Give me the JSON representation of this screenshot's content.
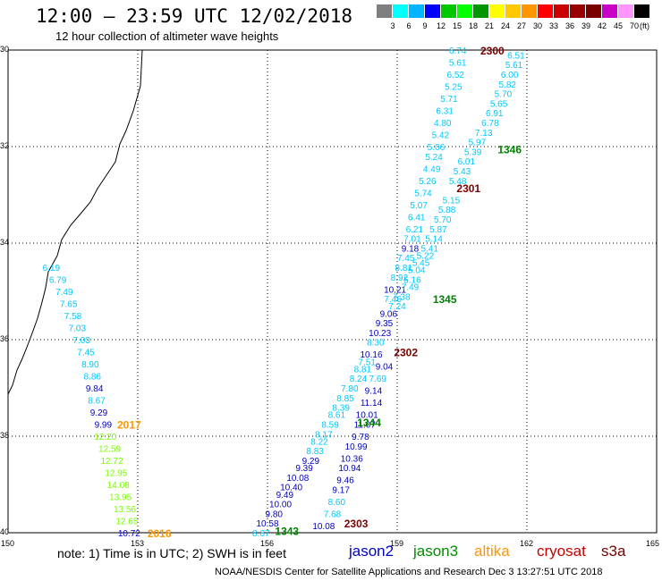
{
  "title": "12:00 – 23:59 UTC 12/02/2018",
  "subtitle": "12 hour collection of altimeter wave heights",
  "legend": {
    "colors": [
      "#7f7f7f",
      "#00ffff",
      "#00b4ff",
      "#0000ff",
      "#00c800",
      "#00ff00",
      "#009600",
      "#ffff00",
      "#ffc800",
      "#ff9600",
      "#ff0000",
      "#c80000",
      "#960000",
      "#780000",
      "#c800c8",
      "#ff96ff",
      "#000000"
    ],
    "labels": [
      "3",
      "6",
      "9",
      "12",
      "15",
      "18",
      "21",
      "24",
      "27",
      "30",
      "33",
      "36",
      "39",
      "42",
      "45",
      "70"
    ],
    "unit": "(ft)"
  },
  "chart_data": {
    "type": "scatter",
    "x_ticks": [
      "150",
      "153",
      "156",
      "159",
      "162",
      "165"
    ],
    "y_ticks": [
      "30",
      "32",
      "34",
      "36",
      "38",
      "40"
    ],
    "xlim": [
      150,
      165
    ],
    "ylim": [
      30,
      40
    ],
    "points": [
      {
        "v": "6.74",
        "lon": 160.4,
        "lat": 30.0,
        "c": "#00c8ff"
      },
      {
        "v": "5.61",
        "lon": 160.4,
        "lat": 30.25,
        "c": "#00c8ff"
      },
      {
        "v": "6.52",
        "lon": 160.35,
        "lat": 30.5,
        "c": "#00c8ff"
      },
      {
        "v": "5.25",
        "lon": 160.3,
        "lat": 30.75,
        "c": "#00c8ff"
      },
      {
        "v": "5.71",
        "lon": 160.2,
        "lat": 31.0,
        "c": "#00c8ff"
      },
      {
        "v": "6.31",
        "lon": 160.1,
        "lat": 31.25,
        "c": "#00c8ff"
      },
      {
        "v": "4.80",
        "lon": 160.05,
        "lat": 31.5,
        "c": "#00c8ff"
      },
      {
        "v": "5.42",
        "lon": 160.0,
        "lat": 31.75,
        "c": "#00c8ff"
      },
      {
        "v": "5.06",
        "lon": 159.9,
        "lat": 32.0,
        "c": "#00c8ff"
      },
      {
        "v": "5.24",
        "lon": 159.85,
        "lat": 32.2,
        "c": "#00c8ff"
      },
      {
        "v": "4.49",
        "lon": 159.8,
        "lat": 32.45,
        "c": "#00c8ff"
      },
      {
        "v": "5.26",
        "lon": 159.7,
        "lat": 32.7,
        "c": "#00c8ff"
      },
      {
        "v": "5.74",
        "lon": 159.6,
        "lat": 32.95,
        "c": "#00c8ff"
      },
      {
        "v": "5.07",
        "lon": 159.5,
        "lat": 33.2,
        "c": "#00c8ff"
      },
      {
        "v": "6.41",
        "lon": 159.45,
        "lat": 33.45,
        "c": "#00c8ff"
      },
      {
        "v": "6.21",
        "lon": 159.4,
        "lat": 33.7,
        "c": "#00c8ff"
      },
      {
        "v": "7.01",
        "lon": 159.35,
        "lat": 33.9,
        "c": "#00c8ff"
      },
      {
        "v": "9.18",
        "lon": 159.3,
        "lat": 34.1,
        "c": "#0000c8"
      },
      {
        "v": "7.45",
        "lon": 159.2,
        "lat": 34.3,
        "c": "#00c8ff"
      },
      {
        "v": "8.81",
        "lon": 159.15,
        "lat": 34.5,
        "c": "#00c8ff"
      },
      {
        "v": "8.92",
        "lon": 159.05,
        "lat": 34.7,
        "c": "#00c8ff"
      },
      {
        "v": "10.21",
        "lon": 158.95,
        "lat": 34.95,
        "c": "#0000c8"
      },
      {
        "v": "7.46",
        "lon": 158.9,
        "lat": 35.15,
        "c": "#00c8ff"
      },
      {
        "v": "9.06",
        "lon": 158.8,
        "lat": 35.45,
        "c": "#0000c8"
      },
      {
        "v": "9.35",
        "lon": 158.7,
        "lat": 35.65,
        "c": "#0000c8"
      },
      {
        "v": "10.23",
        "lon": 158.6,
        "lat": 35.85,
        "c": "#0000c8"
      },
      {
        "v": "8.30",
        "lon": 158.5,
        "lat": 36.05,
        "c": "#00c8ff"
      },
      {
        "v": "10.16",
        "lon": 158.4,
        "lat": 36.3,
        "c": "#0000c8"
      },
      {
        "v": "7.51",
        "lon": 158.3,
        "lat": 36.45,
        "c": "#00c8ff"
      },
      {
        "v": "8.81",
        "lon": 158.2,
        "lat": 36.6,
        "c": "#00c8ff"
      },
      {
        "v": "8.24",
        "lon": 158.1,
        "lat": 36.8,
        "c": "#00c8ff"
      },
      {
        "v": "7.80",
        "lon": 157.9,
        "lat": 37.0,
        "c": "#00c8ff"
      },
      {
        "v": "8.85",
        "lon": 157.8,
        "lat": 37.2,
        "c": "#00c8ff"
      },
      {
        "v": "8.39",
        "lon": 157.7,
        "lat": 37.4,
        "c": "#00c8ff"
      },
      {
        "v": "8.61",
        "lon": 157.6,
        "lat": 37.55,
        "c": "#00c8ff"
      },
      {
        "v": "8.59",
        "lon": 157.45,
        "lat": 37.75,
        "c": "#00c8ff"
      },
      {
        "v": "8.17",
        "lon": 157.3,
        "lat": 37.95,
        "c": "#00c8ff"
      },
      {
        "v": "8.22",
        "lon": 157.2,
        "lat": 38.1,
        "c": "#00c8ff"
      },
      {
        "v": "8.83",
        "lon": 157.1,
        "lat": 38.3,
        "c": "#00c8ff"
      },
      {
        "v": "9.29",
        "lon": 157.0,
        "lat": 38.5,
        "c": "#0000c8"
      },
      {
        "v": "9.39",
        "lon": 156.85,
        "lat": 38.65,
        "c": "#0000c8"
      },
      {
        "v": "10.08",
        "lon": 156.7,
        "lat": 38.85,
        "c": "#0000c8"
      },
      {
        "v": "10.40",
        "lon": 156.55,
        "lat": 39.05,
        "c": "#0000c8"
      },
      {
        "v": "9.49",
        "lon": 156.4,
        "lat": 39.2,
        "c": "#0000c8"
      },
      {
        "v": "10.00",
        "lon": 156.3,
        "lat": 39.4,
        "c": "#0000c8"
      },
      {
        "v": "9.80",
        "lon": 156.15,
        "lat": 39.6,
        "c": "#0000c8"
      },
      {
        "v": "10.58",
        "lon": 156.0,
        "lat": 39.8,
        "c": "#0000c8"
      },
      {
        "v": "8.67",
        "lon": 155.85,
        "lat": 40.0,
        "c": "#00c8ff"
      },
      {
        "v": "6.51",
        "lon": 161.75,
        "lat": 30.1,
        "c": "#00c8ff"
      },
      {
        "v": "5.61",
        "lon": 161.7,
        "lat": 30.3,
        "c": "#00c8ff"
      },
      {
        "v": "6.00",
        "lon": 161.6,
        "lat": 30.5,
        "c": "#00c8ff"
      },
      {
        "v": "5.82",
        "lon": 161.55,
        "lat": 30.7,
        "c": "#00c8ff"
      },
      {
        "v": "5.70",
        "lon": 161.45,
        "lat": 30.9,
        "c": "#00c8ff"
      },
      {
        "v": "5.65",
        "lon": 161.35,
        "lat": 31.1,
        "c": "#00c8ff"
      },
      {
        "v": "6.91",
        "lon": 161.25,
        "lat": 31.3,
        "c": "#00c8ff"
      },
      {
        "v": "6.78",
        "lon": 161.15,
        "lat": 31.5,
        "c": "#00c8ff"
      },
      {
        "v": "7.13",
        "lon": 161.0,
        "lat": 31.7,
        "c": "#00c8ff"
      },
      {
        "v": "5.97",
        "lon": 160.85,
        "lat": 31.9,
        "c": "#00c8ff"
      },
      {
        "v": "5.39",
        "lon": 160.75,
        "lat": 32.1,
        "c": "#00c8ff"
      },
      {
        "v": "6.01",
        "lon": 160.6,
        "lat": 32.3,
        "c": "#00c8ff"
      },
      {
        "v": "5.43",
        "lon": 160.5,
        "lat": 32.5,
        "c": "#00c8ff"
      },
      {
        "v": "5.48",
        "lon": 160.4,
        "lat": 32.7,
        "c": "#00c8ff"
      },
      {
        "v": "5.15",
        "lon": 160.25,
        "lat": 33.1,
        "c": "#00c8ff"
      },
      {
        "v": "5.88",
        "lon": 160.15,
        "lat": 33.3,
        "c": "#00c8ff"
      },
      {
        "v": "5.70",
        "lon": 160.05,
        "lat": 33.5,
        "c": "#00c8ff"
      },
      {
        "v": "5.87",
        "lon": 159.95,
        "lat": 33.7,
        "c": "#00c8ff"
      },
      {
        "v": "5.14",
        "lon": 159.85,
        "lat": 33.9,
        "c": "#00c8ff"
      },
      {
        "v": "5.41",
        "lon": 159.75,
        "lat": 34.1,
        "c": "#00c8ff"
      },
      {
        "v": "5.22",
        "lon": 159.65,
        "lat": 34.25,
        "c": "#00c8ff"
      },
      {
        "v": "5.45",
        "lon": 159.55,
        "lat": 34.4,
        "c": "#00c8ff"
      },
      {
        "v": "5.04",
        "lon": 159.45,
        "lat": 34.55,
        "c": "#00c8ff"
      },
      {
        "v": "5.16",
        "lon": 159.35,
        "lat": 34.75,
        "c": "#00c8ff"
      },
      {
        "v": "7.49",
        "lon": 159.3,
        "lat": 34.9,
        "c": "#00c8ff"
      },
      {
        "v": "7.38",
        "lon": 159.1,
        "lat": 35.1,
        "c": "#00c8ff"
      },
      {
        "v": "7.24",
        "lon": 159.0,
        "lat": 35.3,
        "c": "#00c8ff"
      },
      {
        "v": "9.04",
        "lon": 158.7,
        "lat": 36.55,
        "c": "#0000c8"
      },
      {
        "v": "7.69",
        "lon": 158.55,
        "lat": 36.8,
        "c": "#00c8ff"
      },
      {
        "v": "9.14",
        "lon": 158.45,
        "lat": 37.05,
        "c": "#0000c8"
      },
      {
        "v": "11.14",
        "lon": 158.4,
        "lat": 37.3,
        "c": "#0000c8"
      },
      {
        "v": "10.01",
        "lon": 158.3,
        "lat": 37.55,
        "c": "#0000c8"
      },
      {
        "v": "11.07",
        "lon": 158.25,
        "lat": 37.75,
        "c": "#0000c8"
      },
      {
        "v": "9.78",
        "lon": 158.15,
        "lat": 38.0,
        "c": "#0000c8"
      },
      {
        "v": "10.99",
        "lon": 158.05,
        "lat": 38.2,
        "c": "#0000c8"
      },
      {
        "v": "10.36",
        "lon": 157.95,
        "lat": 38.45,
        "c": "#0000c8"
      },
      {
        "v": "10.94",
        "lon": 157.9,
        "lat": 38.65,
        "c": "#0000c8"
      },
      {
        "v": "9.46",
        "lon": 157.8,
        "lat": 38.9,
        "c": "#0000c8"
      },
      {
        "v": "9.17",
        "lon": 157.7,
        "lat": 39.1,
        "c": "#0000c8"
      },
      {
        "v": "8.60",
        "lon": 157.6,
        "lat": 39.35,
        "c": "#00c8ff"
      },
      {
        "v": "7.68",
        "lon": 157.5,
        "lat": 39.6,
        "c": "#00c8ff"
      },
      {
        "v": "10.08",
        "lon": 157.3,
        "lat": 39.85,
        "c": "#0000c8"
      },
      {
        "v": "6.19",
        "lon": 151.0,
        "lat": 34.5,
        "c": "#00c8ff"
      },
      {
        "v": "6.79",
        "lon": 151.15,
        "lat": 34.75,
        "c": "#00c8ff"
      },
      {
        "v": "7.49",
        "lon": 151.3,
        "lat": 35.0,
        "c": "#00c8ff"
      },
      {
        "v": "7.65",
        "lon": 151.4,
        "lat": 35.25,
        "c": "#00c8ff"
      },
      {
        "v": "7.58",
        "lon": 151.5,
        "lat": 35.5,
        "c": "#00c8ff"
      },
      {
        "v": "7.03",
        "lon": 151.6,
        "lat": 35.75,
        "c": "#00c8ff"
      },
      {
        "v": "7.03",
        "lon": 151.7,
        "lat": 36.0,
        "c": "#00c8ff"
      },
      {
        "v": "7.45",
        "lon": 151.8,
        "lat": 36.25,
        "c": "#00c8ff"
      },
      {
        "v": "8.90",
        "lon": 151.9,
        "lat": 36.5,
        "c": "#00c8ff"
      },
      {
        "v": "8.86",
        "lon": 151.95,
        "lat": 36.75,
        "c": "#00c8ff"
      },
      {
        "v": "9.84",
        "lon": 152.0,
        "lat": 37.0,
        "c": "#0000c8"
      },
      {
        "v": "8.67",
        "lon": 152.05,
        "lat": 37.25,
        "c": "#00c8ff"
      },
      {
        "v": "9.29",
        "lon": 152.1,
        "lat": 37.5,
        "c": "#0000c8"
      },
      {
        "v": "9.99",
        "lon": 152.2,
        "lat": 37.75,
        "c": "#0000c8"
      },
      {
        "v": "12.20",
        "lon": 152.25,
        "lat": 38.0,
        "c": "#78ff00"
      },
      {
        "v": "12.59",
        "lon": 152.35,
        "lat": 38.25,
        "c": "#78ff00"
      },
      {
        "v": "12.72",
        "lon": 152.4,
        "lat": 38.5,
        "c": "#78ff00"
      },
      {
        "v": "12.95",
        "lon": 152.5,
        "lat": 38.75,
        "c": "#78ff00"
      },
      {
        "v": "14.08",
        "lon": 152.55,
        "lat": 39.0,
        "c": "#78ff00"
      },
      {
        "v": "13.95",
        "lon": 152.6,
        "lat": 39.25,
        "c": "#78ff00"
      },
      {
        "v": "13.56",
        "lon": 152.7,
        "lat": 39.5,
        "c": "#78ff00"
      },
      {
        "v": "12.65",
        "lon": 152.75,
        "lat": 39.75,
        "c": "#78ff00"
      },
      {
        "v": "10.72",
        "lon": 152.8,
        "lat": 40.0,
        "c": "#0000c8"
      }
    ],
    "time_labels": [
      {
        "t": "2300",
        "lon": 161.2,
        "lat": 30.0,
        "c": "#780000"
      },
      {
        "t": "1346",
        "lon": 161.6,
        "lat": 32.05,
        "c": "#008200"
      },
      {
        "t": "2301",
        "lon": 160.65,
        "lat": 32.85,
        "c": "#780000"
      },
      {
        "t": "1345",
        "lon": 160.1,
        "lat": 35.15,
        "c": "#008200"
      },
      {
        "t": "2302",
        "lon": 159.2,
        "lat": 36.25,
        "c": "#780000"
      },
      {
        "t": "1344",
        "lon": 158.35,
        "lat": 37.7,
        "c": "#008200"
      },
      {
        "t": "2017",
        "lon": 152.8,
        "lat": 37.75,
        "c": "#ff9600"
      },
      {
        "t": "2303",
        "lon": 158.05,
        "lat": 39.8,
        "c": "#780000"
      },
      {
        "t": "1343",
        "lon": 156.45,
        "lat": 39.95,
        "c": "#008200"
      },
      {
        "t": "2016",
        "lon": 153.5,
        "lat": 40.0,
        "c": "#ff9600"
      }
    ]
  },
  "note": "note: 1) Time is in UTC; 2) SWH is in feet",
  "satellites": [
    {
      "name": "jason2",
      "color": "#0000c8"
    },
    {
      "name": "jason3",
      "color": "#008c00"
    },
    {
      "name": "altika",
      "color": "#ff9600"
    },
    {
      "name": "cryosat",
      "color": "#c80000"
    },
    {
      "name": "s3a",
      "color": "#780000"
    }
  ],
  "credit": "NOAA/NESDIS Center for Satellite Applications and Research    Dec  3 13:27:51 UTC 2018"
}
